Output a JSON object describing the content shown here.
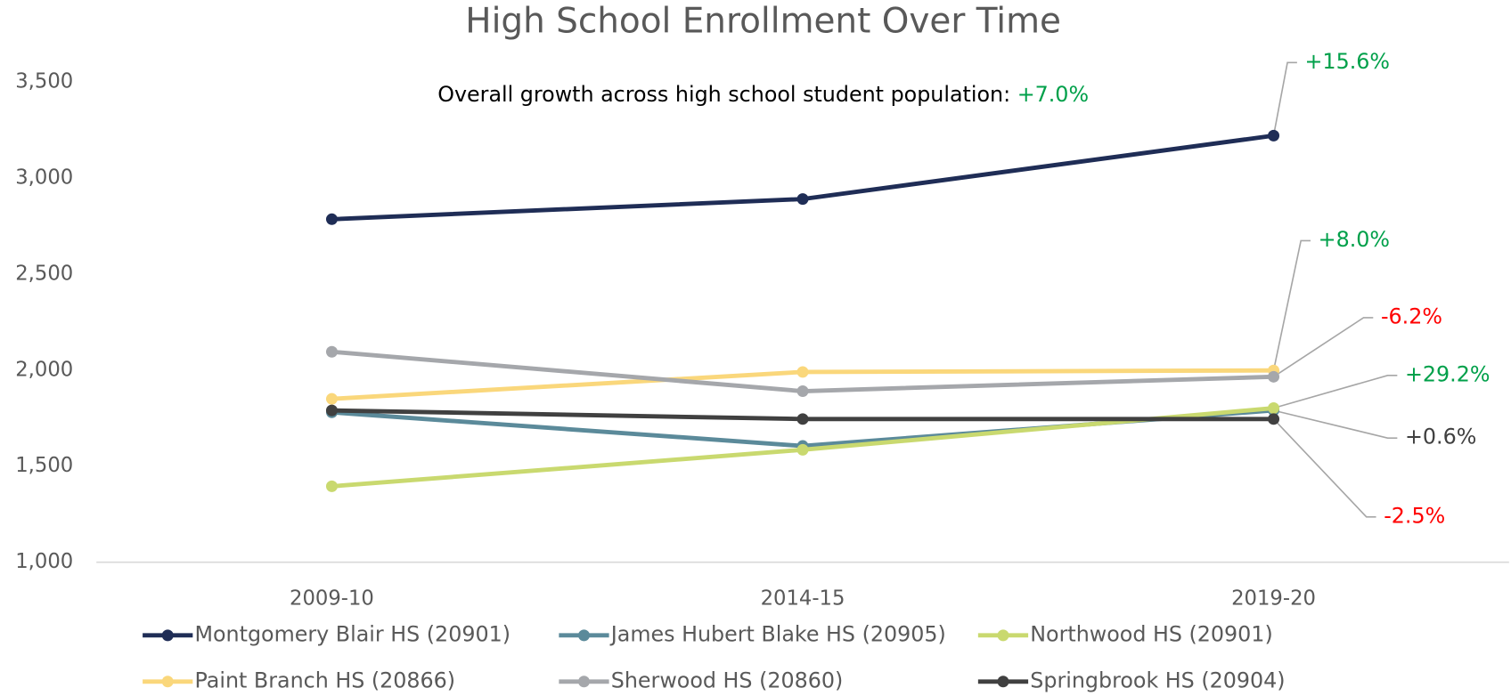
{
  "chart_data": {
    "type": "line",
    "title": "High School Enrollment Over Time",
    "subtitle": "Overall growth across high school student population: ",
    "subtitle_value": "+7.0%",
    "subtitle_value_color": "#00a04a",
    "categories": [
      "2009-10",
      "2014-15",
      "2019-20"
    ],
    "series": [
      {
        "name": "Montgomery Blair HS (20901)",
        "color": "#1f2d56",
        "values": [
          2785,
          2890,
          3220
        ]
      },
      {
        "name": "James Hubert Blake HS (20905)",
        "color": "#5b8a9a",
        "values": [
          1780,
          1605,
          1790
        ]
      },
      {
        "name": "Northwood HS (20901)",
        "color": "#c9d96f",
        "values": [
          1395,
          1585,
          1802
        ]
      },
      {
        "name": "Paint Branch HS (20866)",
        "color": "#fad77b",
        "values": [
          1850,
          1990,
          1998
        ]
      },
      {
        "name": "Sherwood HS (20860)",
        "color": "#a5a7ab",
        "values": [
          2095,
          1890,
          1965
        ]
      },
      {
        "name": "Springbrook HS (20904)",
        "color": "#404040",
        "values": [
          1790,
          1745,
          1745
        ]
      }
    ],
    "annotations": [
      {
        "series": 0,
        "text": "+15.6%",
        "color": "#00a04a"
      },
      {
        "series": 3,
        "text": "+8.0%",
        "color": "#00a04a"
      },
      {
        "series": 4,
        "text": "-6.2%",
        "color": "#ff0000"
      },
      {
        "series": 2,
        "text": "+29.2%",
        "color": "#00a04a"
      },
      {
        "series": 1,
        "text": "+0.6%",
        "color": "#404040"
      },
      {
        "series": 5,
        "text": "-2.5%",
        "color": "#ff0000"
      }
    ],
    "ylim": [
      1000,
      3500
    ],
    "yticks": [
      {
        "value": 1000,
        "label": "1,000"
      },
      {
        "value": 1500,
        "label": "1,500"
      },
      {
        "value": 2000,
        "label": "2,000"
      },
      {
        "value": 2500,
        "label": "2,500"
      },
      {
        "value": 3000,
        "label": "3,000"
      },
      {
        "value": 3500,
        "label": "3,500"
      }
    ],
    "grid": false,
    "legend": "bottom"
  }
}
